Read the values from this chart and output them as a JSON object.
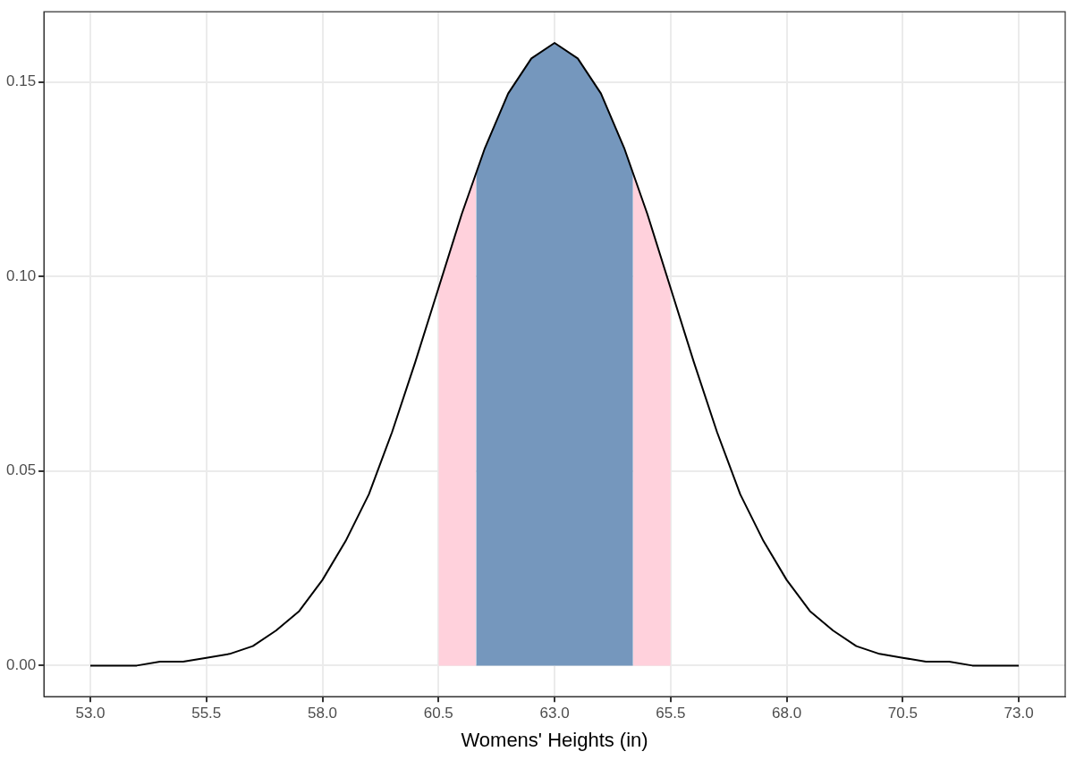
{
  "chart_data": {
    "type": "line",
    "xlabel": "Womens' Heights (in)",
    "xlim": [
      52,
      74
    ],
    "ylim": [
      -0.008,
      0.168
    ],
    "xticks": [
      {
        "value": 53,
        "label": "53.0"
      },
      {
        "value": 55.5,
        "label": "55.5"
      },
      {
        "value": 58,
        "label": "58.0"
      },
      {
        "value": 60.5,
        "label": "60.5"
      },
      {
        "value": 63,
        "label": "63.0"
      },
      {
        "value": 65.5,
        "label": "65.5"
      },
      {
        "value": 68,
        "label": "68.0"
      },
      {
        "value": 70.5,
        "label": "70.5"
      },
      {
        "value": 73,
        "label": "73.0"
      }
    ],
    "yticks": [
      {
        "value": 0,
        "label": "0.00"
      },
      {
        "value": 0.05,
        "label": "0.05"
      },
      {
        "value": 0.1,
        "label": "0.10"
      },
      {
        "value": 0.15,
        "label": "0.15"
      }
    ],
    "grid": true,
    "legend": false,
    "marker": "none",
    "line_style": "solid",
    "series": [
      {
        "type": "area",
        "color": "#ffd1dc",
        "x": [
          60.5,
          61,
          61.31,
          61.5,
          62,
          62.5,
          63,
          63.5,
          64,
          64.5,
          64.69,
          65,
          65.5
        ],
        "values": [
          0.097,
          0.116,
          0.127,
          null,
          null,
          null,
          null,
          null,
          null,
          null,
          0.127,
          0.116,
          0.097
        ]
      },
      {
        "type": "area",
        "color": "#7597bd",
        "x": [
          61.31,
          61.5,
          62,
          62.5,
          63,
          63.5,
          64,
          64.5,
          64.69
        ],
        "values": [
          0.127,
          0.133,
          0.147,
          0.156,
          0.16,
          0.156,
          0.147,
          0.133,
          0.127
        ]
      },
      {
        "type": "line",
        "color": "#000000",
        "x": [
          53,
          53.5,
          54,
          54.5,
          55,
          55.5,
          56,
          56.5,
          57,
          57.5,
          58,
          58.5,
          59,
          59.5,
          60,
          60.5,
          61,
          61.5,
          62,
          62.5,
          63,
          63.5,
          64,
          64.5,
          65,
          65.5,
          66,
          66.5,
          67,
          67.5,
          68,
          68.5,
          69,
          69.5,
          70,
          70.5,
          71,
          71.5,
          72,
          72.5,
          73
        ],
        "values": [
          0,
          0,
          0,
          0.001,
          0.001,
          0.002,
          0.003,
          0.005,
          0.009,
          0.014,
          0.022,
          0.032,
          0.044,
          0.06,
          0.078,
          0.097,
          0.116,
          0.133,
          0.147,
          0.156,
          0.16,
          0.156,
          0.147,
          0.133,
          0.116,
          0.097,
          0.078,
          0.06,
          0.044,
          0.032,
          0.022,
          0.014,
          0.009,
          0.005,
          0.003,
          0.002,
          0.001,
          0.001,
          0,
          0,
          0
        ]
      }
    ]
  }
}
